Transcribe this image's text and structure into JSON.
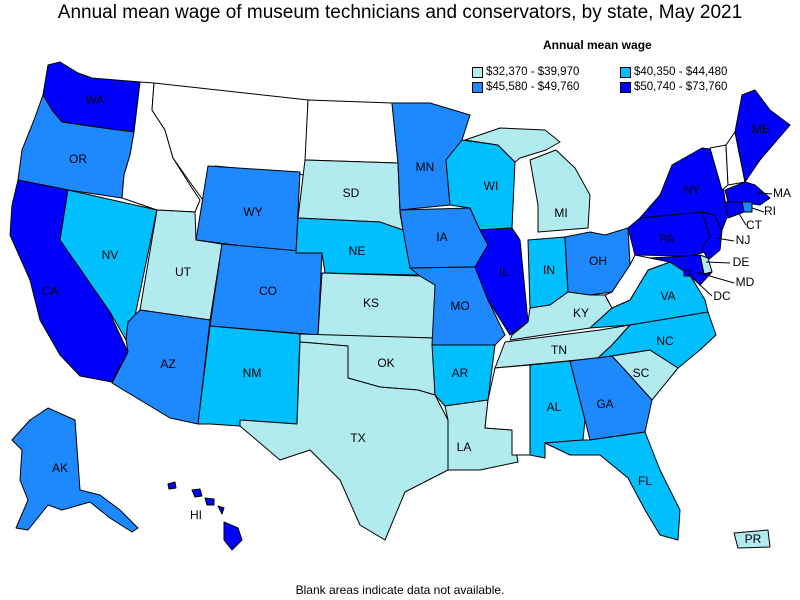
{
  "title": "Annual mean wage of museum technicians and conservators, by state, May 2021",
  "footnote": "Blank areas indicate data not available.",
  "legend": {
    "title": "Annual mean wage",
    "items": [
      {
        "label": "$32,370 - $39,970",
        "color": "#b2ebee"
      },
      {
        "label": "$40,350 - $44,480",
        "color": "#00bfff"
      },
      {
        "label": "$45,580 - $49,760",
        "color": "#1e88ff"
      },
      {
        "label": "$50,740 - $73,760",
        "color": "#0000ff"
      }
    ]
  },
  "colors": {
    "tier1": "#b2ebee",
    "tier2": "#00bfff",
    "tier3": "#1e88ff",
    "tier4": "#0000ff",
    "nodata": "#ffffff",
    "border": "#000000"
  },
  "states": {
    "WA": {
      "label": "WA",
      "tier": 4
    },
    "OR": {
      "label": "OR",
      "tier": 3
    },
    "CA": {
      "label": "CA",
      "tier": 4
    },
    "NV": {
      "label": "NV",
      "tier": 2
    },
    "ID": {
      "label": "",
      "tier": 0
    },
    "MT": {
      "label": "",
      "tier": 0
    },
    "WY": {
      "label": "WY",
      "tier": 3
    },
    "UT": {
      "label": "UT",
      "tier": 1
    },
    "AZ": {
      "label": "AZ",
      "tier": 3
    },
    "CO": {
      "label": "CO",
      "tier": 3
    },
    "NM": {
      "label": "NM",
      "tier": 2
    },
    "ND": {
      "label": "",
      "tier": 0
    },
    "SD": {
      "label": "SD",
      "tier": 1
    },
    "NE": {
      "label": "NE",
      "tier": 2
    },
    "KS": {
      "label": "KS",
      "tier": 1
    },
    "OK": {
      "label": "OK",
      "tier": 1
    },
    "TX": {
      "label": "TX",
      "tier": 1
    },
    "MN": {
      "label": "MN",
      "tier": 3
    },
    "IA": {
      "label": "IA",
      "tier": 3
    },
    "MO": {
      "label": "MO",
      "tier": 3
    },
    "AR": {
      "label": "AR",
      "tier": 2
    },
    "LA": {
      "label": "LA",
      "tier": 1
    },
    "WI": {
      "label": "WI",
      "tier": 2
    },
    "IL": {
      "label": "IL",
      "tier": 4
    },
    "MI": {
      "label": "MI",
      "tier": 1
    },
    "IN": {
      "label": "IN",
      "tier": 2
    },
    "OH": {
      "label": "OH",
      "tier": 3
    },
    "KY": {
      "label": "KY",
      "tier": 1
    },
    "TN": {
      "label": "TN",
      "tier": 1
    },
    "MS": {
      "label": "",
      "tier": 0
    },
    "AL": {
      "label": "AL",
      "tier": 2
    },
    "GA": {
      "label": "GA",
      "tier": 3
    },
    "FL": {
      "label": "FL",
      "tier": 2
    },
    "SC": {
      "label": "SC",
      "tier": 1
    },
    "NC": {
      "label": "NC",
      "tier": 2
    },
    "VA": {
      "label": "VA",
      "tier": 2
    },
    "WV": {
      "label": "",
      "tier": 0
    },
    "PA": {
      "label": "PA",
      "tier": 4
    },
    "NY": {
      "label": "NY",
      "tier": 4
    },
    "VT": {
      "label": "",
      "tier": 0
    },
    "NH": {
      "label": "",
      "tier": 0
    },
    "ME": {
      "label": "ME",
      "tier": 4
    },
    "MA": {
      "label": "MA",
      "tier": 4
    },
    "RI": {
      "label": "RI",
      "tier": 3
    },
    "CT": {
      "label": "CT",
      "tier": 4
    },
    "NJ": {
      "label": "NJ",
      "tier": 4
    },
    "DE": {
      "label": "DE",
      "tier": 1
    },
    "MD": {
      "label": "MD",
      "tier": 4
    },
    "DC": {
      "label": "DC",
      "tier": 4
    },
    "AK": {
      "label": "AK",
      "tier": 3
    },
    "HI": {
      "label": "HI",
      "tier": 4
    },
    "PR": {
      "label": "PR",
      "tier": 1
    }
  }
}
